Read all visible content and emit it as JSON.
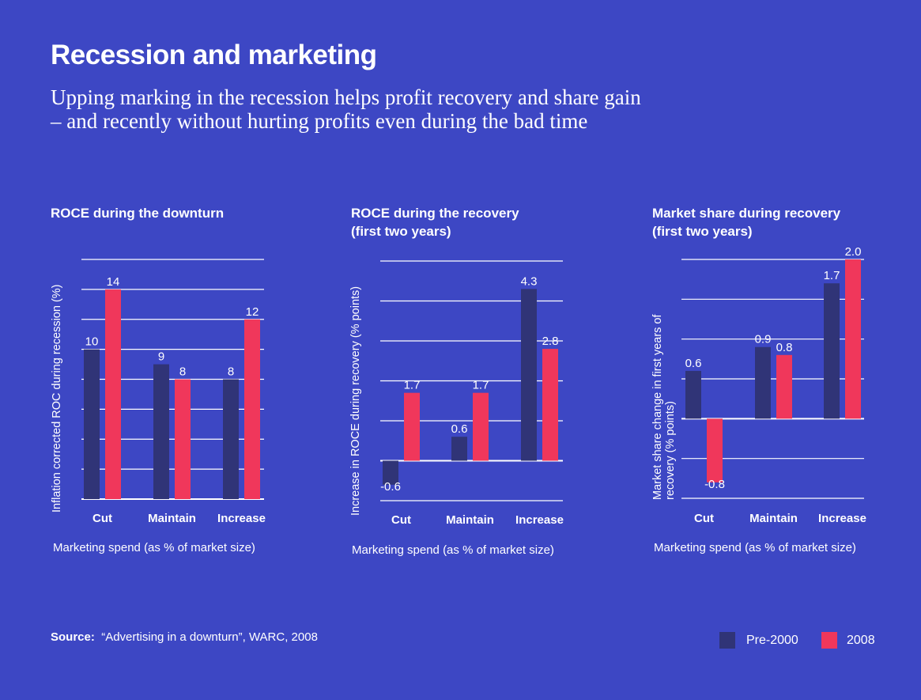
{
  "header": {
    "title": "Recession and marketing",
    "subtitle_line1": "Upping marking in the recession helps profit recovery and share gain",
    "subtitle_line2": "– and recently without hurting profits even during the bad time"
  },
  "colors": {
    "background": "#3d47c4",
    "pre2000": "#303477",
    "y2008": "#f0375b",
    "grid": "#ffffff"
  },
  "legend": {
    "items": [
      {
        "label": "Pre-2000",
        "color": "#303477"
      },
      {
        "label": "2008",
        "color": "#f0375b"
      }
    ]
  },
  "footer": {
    "source_label": "Source:",
    "source_text": "“Advertising in a downturn”, WARC, 2008"
  },
  "chart_data": [
    {
      "type": "bar",
      "title_line1": "ROCE during the downturn",
      "title_line2": "",
      "xlabel": "Marketing spend (as % of market size)",
      "ylabel": "Inflation corrected ROC during recession (%)",
      "categories": [
        "Cut",
        "Maintain",
        "Increase"
      ],
      "series": [
        {
          "name": "Pre-2000",
          "values": [
            10,
            9,
            8
          ],
          "labels": [
            "10",
            "9",
            "8"
          ]
        },
        {
          "name": "2008",
          "values": [
            14,
            8,
            12
          ],
          "labels": [
            "14",
            "8",
            "12"
          ]
        }
      ],
      "ylim": [
        0,
        16
      ],
      "grid_step": 2,
      "grid": true
    },
    {
      "type": "bar",
      "title_line1": "ROCE during the recovery",
      "title_line2": "(first two years)",
      "xlabel": "Marketing spend (as % of market size)",
      "ylabel": "Increase in ROCE during recovery (% points)",
      "categories": [
        "Cut",
        "Maintain",
        "Increase"
      ],
      "series": [
        {
          "name": "Pre-2000",
          "values": [
            -0.6,
            0.6,
            4.3
          ],
          "labels": [
            "-0.6",
            "0.6",
            "4.3"
          ]
        },
        {
          "name": "2008",
          "values": [
            1.7,
            1.7,
            2.8
          ],
          "labels": [
            "1.7",
            "1.7",
            "2.8"
          ]
        }
      ],
      "ylim": [
        -1,
        5
      ],
      "grid_step": 1,
      "grid": true
    },
    {
      "type": "bar",
      "title_line1": "Market share during recovery",
      "title_line2": "(first two years)",
      "xlabel": "Marketing spend (as % of market size)",
      "ylabel_line1": "Market share change in first years of",
      "ylabel_line2": "recovery (% points)",
      "categories": [
        "Cut",
        "Maintain",
        "Increase"
      ],
      "series": [
        {
          "name": "Pre-2000",
          "values": [
            0.6,
            0.9,
            1.7
          ],
          "labels": [
            "0.6",
            "0.9",
            "1.7"
          ]
        },
        {
          "name": "2008",
          "values": [
            -0.8,
            0.8,
            2.0
          ],
          "labels": [
            "-0.8",
            "0.8",
            "2.0"
          ]
        }
      ],
      "ylim": [
        -1,
        2
      ],
      "grid_step": 0.5,
      "grid": true
    }
  ]
}
